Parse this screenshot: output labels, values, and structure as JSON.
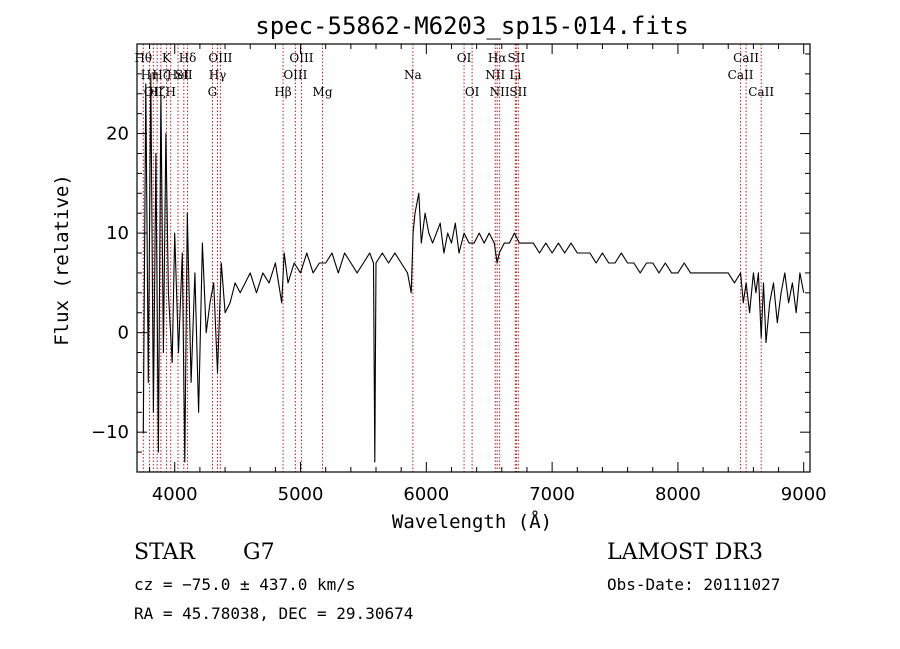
{
  "chart_data": {
    "type": "line",
    "title": "spec-55862-M6203_sp15-014.fits",
    "xlabel": "Wavelength (Å)",
    "ylabel": "Flux (relative)",
    "xlim": [
      3700,
      9050
    ],
    "ylim": [
      -14,
      29
    ],
    "x_ticks": [
      4000,
      5000,
      6000,
      7000,
      8000,
      9000
    ],
    "x_tick_labels": [
      "4000",
      "5000",
      "6000",
      "7000",
      "8000",
      "9000"
    ],
    "y_ticks": [
      -10,
      0,
      10,
      20
    ],
    "y_tick_labels": [
      "−10",
      "0",
      "10",
      "20"
    ],
    "x_minor_step": 200,
    "y_minor_step": 2,
    "series": [
      {
        "name": "flux",
        "x": [
          3750,
          3770,
          3790,
          3810,
          3830,
          3850,
          3870,
          3890,
          3910,
          3930,
          3950,
          3980,
          4000,
          4030,
          4060,
          4080,
          4100,
          4130,
          4160,
          4190,
          4220,
          4250,
          4280,
          4310,
          4340,
          4370,
          4400,
          4440,
          4480,
          4520,
          4560,
          4600,
          4650,
          4700,
          4750,
          4800,
          4850,
          4870,
          4900,
          4950,
          5000,
          5050,
          5100,
          5150,
          5200,
          5250,
          5300,
          5350,
          5400,
          5450,
          5500,
          5550,
          5580,
          5590,
          5600,
          5650,
          5700,
          5750,
          5800,
          5850,
          5880,
          5895,
          5910,
          5940,
          5960,
          5990,
          6020,
          6050,
          6080,
          6110,
          6140,
          6170,
          6200,
          6230,
          6260,
          6300,
          6340,
          6380,
          6420,
          6460,
          6500,
          6540,
          6563,
          6580,
          6620,
          6660,
          6700,
          6740,
          6800,
          6850,
          6900,
          6950,
          7000,
          7050,
          7100,
          7150,
          7200,
          7250,
          7300,
          7350,
          7400,
          7450,
          7500,
          7550,
          7600,
          7650,
          7700,
          7750,
          7800,
          7850,
          7900,
          7950,
          8000,
          8050,
          8100,
          8150,
          8200,
          8250,
          8300,
          8350,
          8400,
          8450,
          8498,
          8520,
          8542,
          8570,
          8600,
          8620,
          8640,
          8662,
          8680,
          8700,
          8730,
          8760,
          8790,
          8820,
          8850,
          8880,
          8910,
          8940,
          8970,
          9000
        ],
        "values": [
          -10,
          25,
          -5,
          26,
          -8,
          18,
          -12,
          24,
          -2,
          20,
          4,
          -3,
          10,
          -2,
          8,
          -13,
          12,
          -5,
          6,
          -8,
          9,
          0,
          3,
          5,
          -4,
          7,
          2,
          3,
          5,
          4,
          5,
          6,
          4,
          6,
          5,
          7,
          3,
          8,
          5,
          7,
          6,
          8,
          6,
          7,
          7,
          8,
          6,
          8,
          7,
          6,
          7,
          8,
          7,
          -13,
          7,
          8,
          7,
          8,
          7,
          6,
          4,
          10,
          12,
          14,
          9,
          12,
          10,
          9,
          10,
          11,
          8,
          10,
          9,
          11,
          8,
          10,
          9,
          9,
          10,
          9,
          10,
          9,
          7,
          8,
          9,
          9,
          10,
          9,
          9,
          9,
          8,
          9,
          8,
          9,
          8,
          9,
          8,
          8,
          8,
          7,
          8,
          7,
          7,
          8,
          7,
          7,
          6,
          7,
          7,
          6,
          7,
          6,
          6,
          7,
          6,
          6,
          6,
          6,
          6,
          6,
          6,
          5,
          6,
          3,
          5,
          2,
          6,
          4,
          6,
          -0.5,
          5,
          -1,
          3,
          5,
          1,
          4,
          6,
          3,
          5,
          2,
          6,
          4
        ]
      }
    ],
    "lines": [
      {
        "wavelength": 3750,
        "label": "Hθ",
        "row": 0
      },
      {
        "wavelength": 3800,
        "label": "Hη",
        "row": 1
      },
      {
        "wavelength": 3830,
        "label": "OII",
        "row": 2
      },
      {
        "wavelength": 3860,
        "label": "Hζ",
        "row": 2
      },
      {
        "wavelength": 3890,
        "label": "Hζ",
        "row": 1
      },
      {
        "wavelength": 3934,
        "label": "K",
        "row": 0
      },
      {
        "wavelength": 3968,
        "label": "H",
        "row": 2
      },
      {
        "wavelength": 4026,
        "label": "HeI",
        "row": 1
      },
      {
        "wavelength": 4072,
        "label": "SII",
        "row": 1
      },
      {
        "wavelength": 4102,
        "label": "Hδ",
        "row": 0
      },
      {
        "wavelength": 4300,
        "label": "G",
        "row": 2
      },
      {
        "wavelength": 4340,
        "label": "Hγ",
        "row": 1
      },
      {
        "wavelength": 4363,
        "label": "OIII",
        "row": 0
      },
      {
        "wavelength": 4861,
        "label": "Hβ",
        "row": 2
      },
      {
        "wavelength": 4959,
        "label": "OIII",
        "row": 1
      },
      {
        "wavelength": 5007,
        "label": "OIII",
        "row": 0
      },
      {
        "wavelength": 5175,
        "label": "Mg",
        "row": 2
      },
      {
        "wavelength": 5893,
        "label": "Na",
        "row": 1
      },
      {
        "wavelength": 6300,
        "label": "OI",
        "row": 0
      },
      {
        "wavelength": 6364,
        "label": "OI",
        "row": 2
      },
      {
        "wavelength": 6548,
        "label": "NII",
        "row": 1
      },
      {
        "wavelength": 6563,
        "label": "Hα",
        "row": 0
      },
      {
        "wavelength": 6583,
        "label": "NII",
        "row": 2
      },
      {
        "wavelength": 6707,
        "label": "Li",
        "row": 1
      },
      {
        "wavelength": 6716,
        "label": "SII",
        "row": 0
      },
      {
        "wavelength": 6731,
        "label": "SII",
        "row": 2
      },
      {
        "wavelength": 8498,
        "label": "CaII",
        "row": 1
      },
      {
        "wavelength": 8542,
        "label": "CaII",
        "row": 0
      },
      {
        "wavelength": 8662,
        "label": "CaII",
        "row": 2
      }
    ]
  },
  "info": {
    "object_class": "STAR",
    "subclass": "G7",
    "survey": "LAMOST DR3",
    "redshift": "cz = −75.0 ± 437.0 km/s",
    "obs_date": "Obs-Date: 20111027",
    "coords": "RA =  45.78038, DEC =  29.30674"
  },
  "colors": {
    "spectrum": "#000000",
    "line_markers": "#b02020",
    "axes": "#000000"
  }
}
